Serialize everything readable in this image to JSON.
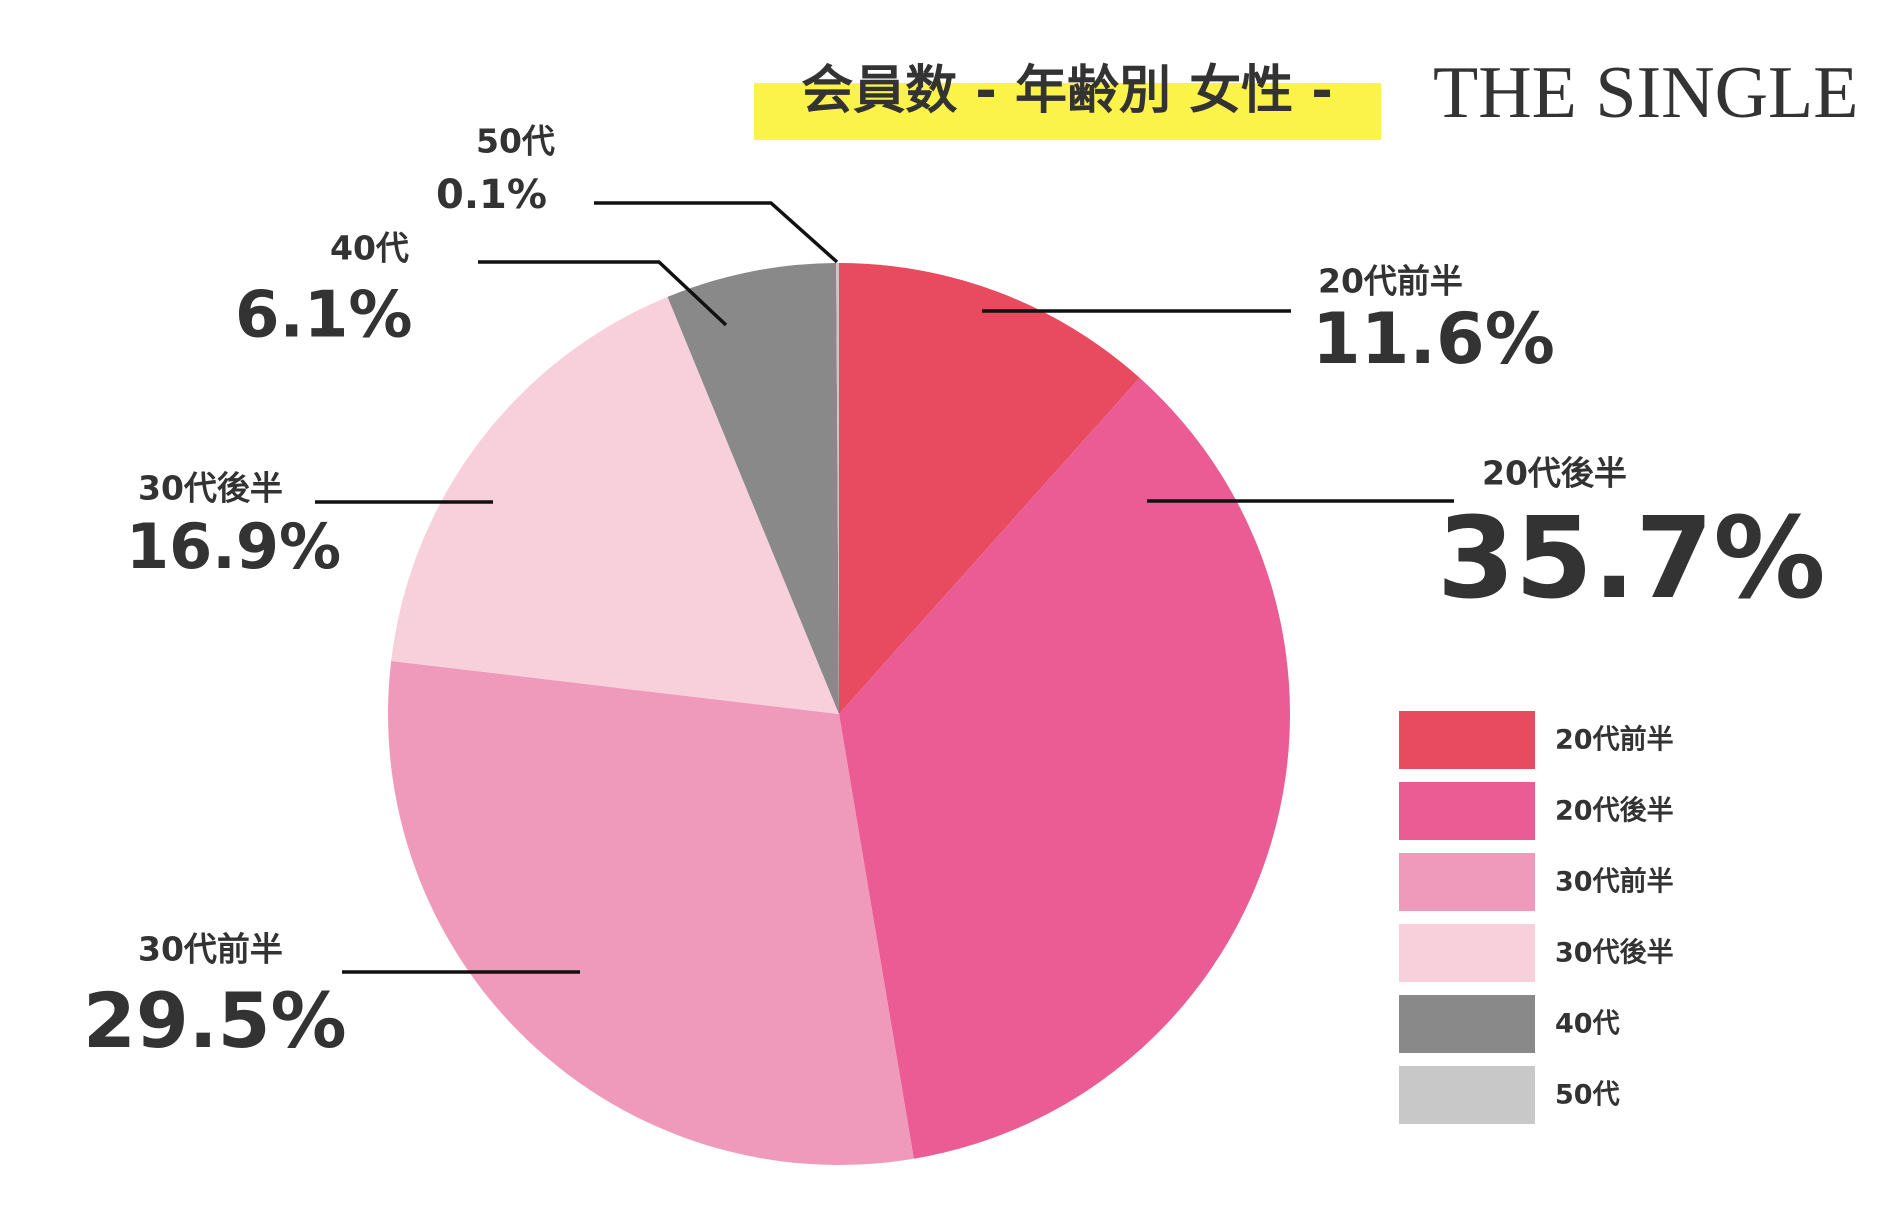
{
  "chart_data": {
    "type": "pie",
    "title": "会員数 - 年齢別 女性 -",
    "brand": "THE SINGLE",
    "categories": [
      "20代前半",
      "20代後半",
      "30代前半",
      "30代後半",
      "40代",
      "50代"
    ],
    "values": [
      11.6,
      35.7,
      29.5,
      16.9,
      6.1,
      0.1
    ],
    "value_labels": [
      "11.6%",
      "35.7%",
      "29.5%",
      "16.9%",
      "6.1%",
      "0.1%"
    ],
    "colors": [
      "#e84a5f",
      "#eb5c95",
      "#f09abb",
      "#f8d0dc",
      "#898989",
      "#c8c8c8"
    ],
    "legend": "right"
  }
}
